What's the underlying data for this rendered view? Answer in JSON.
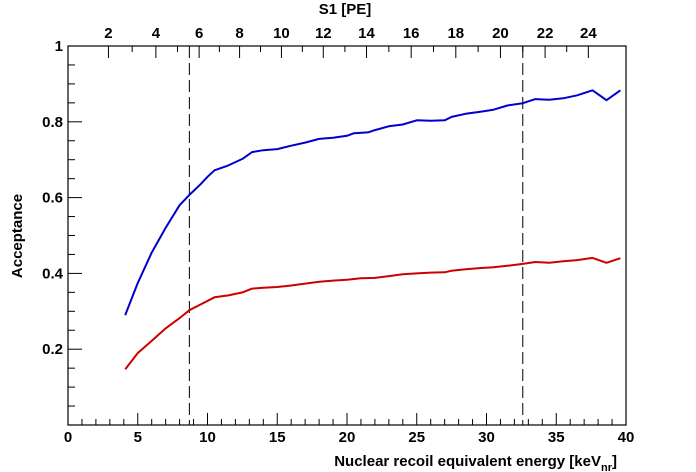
{
  "chart_data": {
    "type": "line",
    "xlabel": "Nuclear recoil equivalent energy [keV",
    "xlabel_sub": "nr",
    "xlabel_close": "]",
    "ylabel": "Acceptance",
    "top_axis_label": "S1 [PE]",
    "xlim": [
      0,
      40
    ],
    "ylim": [
      0,
      1
    ],
    "x_ticks": [
      0,
      5,
      10,
      15,
      20,
      25,
      30,
      35,
      40
    ],
    "y_ticks": [
      0.2,
      0.4,
      0.6,
      0.8,
      1
    ],
    "y_tick_labels": [
      "0.2",
      "0.4",
      "0.6",
      "0.8",
      "1"
    ],
    "top_axis_ticks": [
      {
        "label": "2",
        "x": 2.9
      },
      {
        "label": "4",
        "x": 6.3
      },
      {
        "label": "6",
        "x": 9.4
      },
      {
        "label": "8",
        "x": 12.3
      },
      {
        "label": "10",
        "x": 15.3
      },
      {
        "label": "12",
        "x": 18.3
      },
      {
        "label": "14",
        "x": 21.4
      },
      {
        "label": "16",
        "x": 24.6
      },
      {
        "label": "18",
        "x": 27.8
      },
      {
        "label": "20",
        "x": 31.0
      },
      {
        "label": "22",
        "x": 34.2
      },
      {
        "label": "24",
        "x": 37.3
      }
    ],
    "vertical_lines": [
      8.7,
      32.6
    ],
    "series": [
      {
        "color": "#0000cc",
        "x": [
          4.1,
          5,
          6,
          7,
          8,
          8.7,
          9.5,
          10,
          10.5,
          11.5,
          12.5,
          13.2,
          14,
          15,
          16,
          17,
          18,
          19,
          20,
          20.5,
          21.5,
          22,
          23,
          24,
          25,
          26,
          27,
          27.5,
          28.5,
          29.5,
          30.5,
          31.5,
          32.6,
          33.5,
          34.5,
          35.5,
          36.5,
          37.6,
          38.6,
          39.6
        ],
        "y": [
          0.29,
          0.375,
          0.455,
          0.52,
          0.58,
          0.607,
          0.635,
          0.655,
          0.672,
          0.685,
          0.702,
          0.72,
          0.725,
          0.728,
          0.737,
          0.745,
          0.755,
          0.758,
          0.763,
          0.77,
          0.772,
          0.778,
          0.788,
          0.793,
          0.804,
          0.803,
          0.804,
          0.813,
          0.821,
          0.826,
          0.832,
          0.843,
          0.849,
          0.86,
          0.858,
          0.862,
          0.87,
          0.883,
          0.857,
          0.883
        ]
      },
      {
        "color": "#cc0000",
        "x": [
          4.1,
          5,
          6,
          7,
          8,
          8.7,
          9.5,
          10.5,
          11.5,
          12.5,
          13.2,
          14,
          15,
          16,
          17,
          18,
          19,
          20,
          21,
          22,
          23,
          24,
          25,
          26,
          27,
          27.5,
          28.5,
          29.5,
          30.5,
          31.5,
          32.6,
          33.5,
          34.5,
          35.5,
          36.5,
          37.6,
          38.6,
          39.6
        ],
        "y": [
          0.147,
          0.19,
          0.222,
          0.255,
          0.282,
          0.303,
          0.318,
          0.337,
          0.342,
          0.35,
          0.36,
          0.362,
          0.364,
          0.368,
          0.373,
          0.378,
          0.381,
          0.383,
          0.387,
          0.388,
          0.393,
          0.398,
          0.4,
          0.402,
          0.403,
          0.407,
          0.411,
          0.414,
          0.416,
          0.42,
          0.425,
          0.43,
          0.428,
          0.432,
          0.435,
          0.441,
          0.428,
          0.44
        ]
      }
    ]
  }
}
